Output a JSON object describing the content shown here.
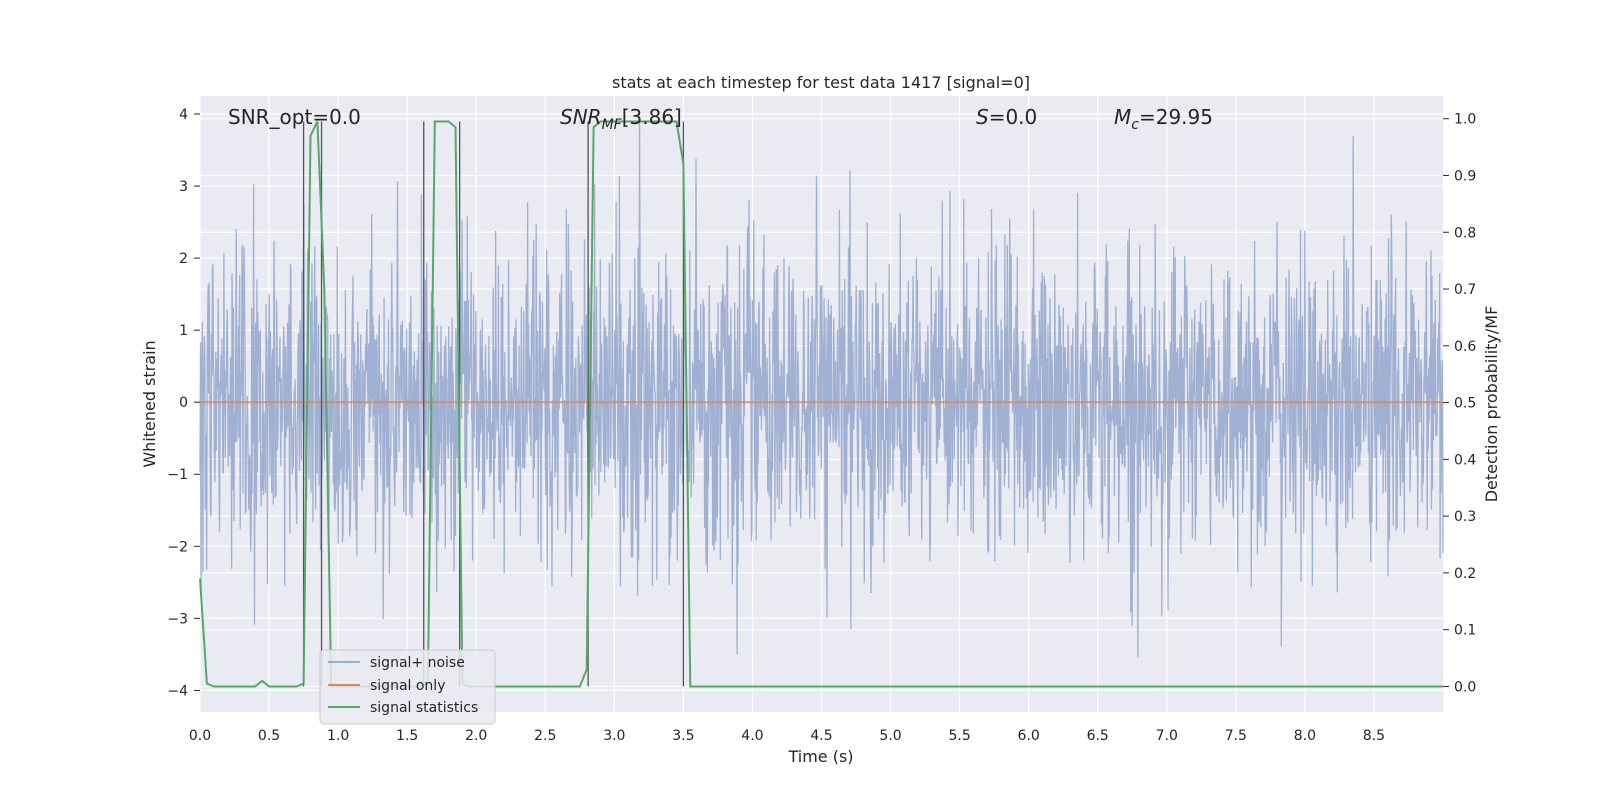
{
  "chart_data": {
    "type": "line",
    "title": "stats at each timestep for test data 1417 [signal=0]",
    "xlabel": "Time (s)",
    "ylabel": "Whitened strain",
    "y2label": "Detection probability/MF",
    "xlim": [
      0,
      9
    ],
    "ylim": [
      -4.3,
      4.25
    ],
    "y2lim": [
      -0.045,
      1.04
    ],
    "xticks": [
      "0.0",
      "0.5",
      "1.0",
      "1.5",
      "2.0",
      "2.5",
      "3.0",
      "3.5",
      "4.0",
      "4.5",
      "5.0",
      "5.5",
      "6.0",
      "6.5",
      "7.0",
      "7.5",
      "8.0",
      "8.5"
    ],
    "yticks": [
      "−4",
      "−3",
      "−2",
      "−1",
      "0",
      "1",
      "2",
      "3",
      "4"
    ],
    "y2ticks": [
      "0.0",
      "0.1",
      "0.2",
      "0.3",
      "0.4",
      "0.5",
      "0.6",
      "0.7",
      "0.8",
      "0.9",
      "1.0"
    ],
    "grid": true,
    "legend_position": "lower-left",
    "annotations": {
      "snr_opt": "SNR_opt=0.0",
      "snr_mf": "[3.86]",
      "s": "=0.0",
      "mc": "=29.95"
    },
    "colors": {
      "background": "#eaeaf2",
      "noise": "#9badd0",
      "signal": "#dd8452",
      "stats": "#55a868",
      "vline": "#555555"
    },
    "series": [
      {
        "name": "signal+ noise",
        "kind": "noise",
        "description_values": {
          "center": 0.0,
          "sigma": 1.0,
          "x_start": 0.0,
          "x_end": 9.0
        }
      },
      {
        "name": "signal only",
        "values_constant": 0.0
      },
      {
        "name": "signal statistics",
        "axis": "y2",
        "x": [
          0.0,
          0.05,
          0.1,
          0.15,
          0.2,
          0.3,
          0.4,
          0.45,
          0.5,
          0.55,
          0.6,
          0.65,
          0.7,
          0.75,
          0.8,
          0.85,
          0.9,
          0.95,
          1.0,
          1.5,
          1.6,
          1.65,
          1.7,
          1.75,
          1.8,
          1.85,
          1.9,
          1.95,
          2.0,
          2.5,
          2.75,
          2.8,
          2.85,
          2.9,
          3.0,
          3.1,
          3.2,
          3.3,
          3.4,
          3.45,
          3.5,
          3.55,
          3.6,
          3.65,
          3.7,
          9.0
        ],
        "y": [
          0.19,
          0.005,
          0.0,
          0.0,
          0.0,
          0.0,
          0.0,
          0.01,
          0.0,
          0.0,
          0.0,
          0.0,
          0.0,
          0.005,
          0.97,
          0.995,
          0.7,
          0.0,
          0.0,
          0.0,
          0.0,
          0.005,
          0.995,
          0.995,
          0.995,
          0.985,
          0.005,
          0.0,
          0.0,
          0.0,
          0.0,
          0.03,
          0.985,
          0.995,
          0.995,
          0.995,
          0.995,
          0.995,
          0.995,
          0.995,
          0.92,
          0.0,
          0.0,
          0.0,
          0.0,
          0.0
        ]
      }
    ],
    "vertical_lines": [
      0.75,
      0.88,
      1.62,
      1.88,
      2.81,
      3.5
    ]
  }
}
